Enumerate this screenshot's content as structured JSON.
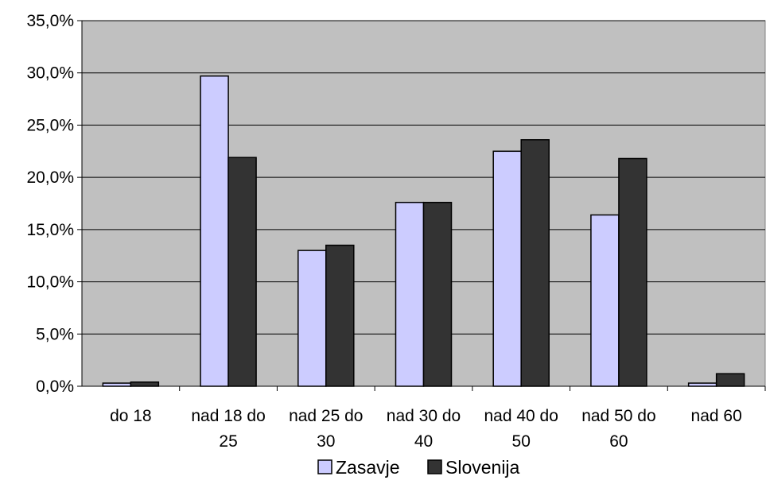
{
  "chart_data": {
    "type": "bar",
    "categories": [
      [
        "do 18"
      ],
      [
        "nad 18 do",
        "25"
      ],
      [
        "nad 25 do",
        "30"
      ],
      [
        "nad 30 do",
        "40"
      ],
      [
        "nad 40 do",
        "50"
      ],
      [
        "nad 50 do",
        "60"
      ],
      [
        "nad 60"
      ]
    ],
    "series": [
      {
        "name": "Zasavje",
        "color": "#ccccff",
        "values": [
          0.3,
          29.7,
          13.0,
          17.6,
          22.5,
          16.4,
          0.3
        ]
      },
      {
        "name": "Slovenija",
        "color": "#333333",
        "values": [
          0.4,
          21.9,
          13.5,
          17.6,
          23.6,
          21.8,
          1.2
        ]
      }
    ],
    "ylim": [
      0,
      35
    ],
    "yticks": [
      "0,0%",
      "5,0%",
      "10,0%",
      "15,0%",
      "20,0%",
      "25,0%",
      "30,0%",
      "35,0%"
    ],
    "grid": true,
    "plot_background": "#c0c0c0",
    "legend_position": "bottom"
  }
}
